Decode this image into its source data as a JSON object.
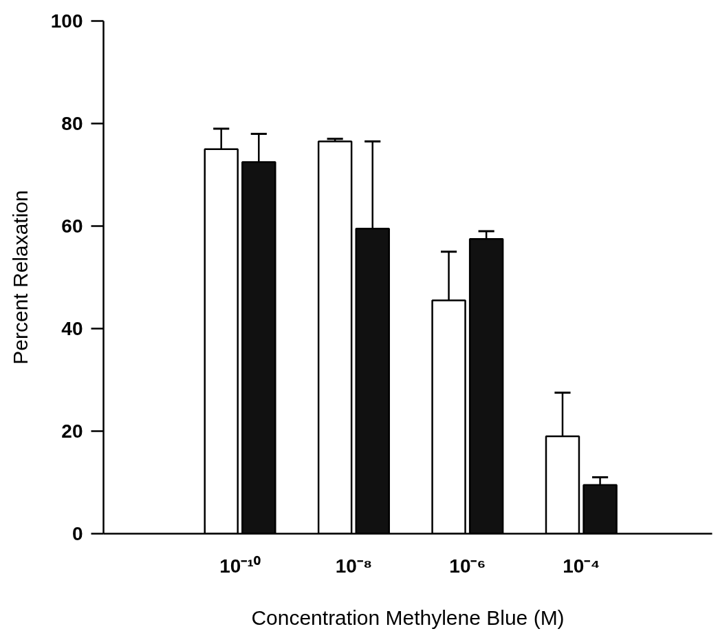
{
  "chart_data": {
    "type": "bar",
    "xlabel": "Concentration Methylene Blue (M)",
    "ylabel": "Percent Relaxation",
    "categories": [
      "10⁻¹⁰",
      "10⁻⁸",
      "10⁻⁶",
      "10⁻⁴"
    ],
    "series": [
      {
        "color": "#ffffff",
        "values": [
          75,
          76.5,
          45.5,
          19
        ],
        "errors": [
          [
            75,
            79
          ],
          [
            76.5,
            77
          ],
          [
            45.5,
            55
          ],
          [
            19,
            27.5
          ]
        ]
      },
      {
        "color": "#111111",
        "values": [
          72.5,
          59.5,
          57.5,
          9.5
        ],
        "errors": [
          [
            72.5,
            78
          ],
          [
            59.5,
            76.5
          ],
          [
            57.5,
            59
          ],
          [
            9.5,
            11
          ]
        ]
      }
    ],
    "ylim": [
      0,
      100
    ],
    "yticks": [
      0,
      20,
      40,
      60,
      80,
      100
    ],
    "grid": false
  }
}
